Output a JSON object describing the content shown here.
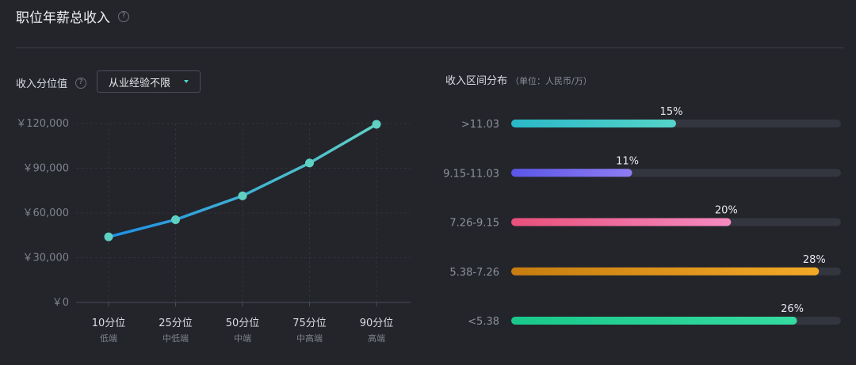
{
  "header": {
    "title": "职位年薪总收入",
    "help_icon": "question-icon",
    "help_glyph": "?"
  },
  "line_section": {
    "label": "收入分位值",
    "help_glyph": "?",
    "select_value": "从业经验不限"
  },
  "dist_section": {
    "title": "收入区间分布",
    "unit": "（单位：人民币/万）"
  },
  "colors": {
    "line": "#2ab3d6",
    "point": "#5fd1c2",
    "track": "#33363e"
  },
  "chart_data": [
    {
      "type": "line",
      "x": [
        "10分位",
        "25分位",
        "50分位",
        "75分位",
        "90分位"
      ],
      "x_sublabels": [
        "低端",
        "中低端",
        "中端",
        "中高端",
        "高端"
      ],
      "values": [
        44000,
        55500,
        71500,
        93500,
        119500
      ],
      "y_ticks": [
        "￥120,000",
        "￥90,000",
        "￥60,000",
        "￥30,000",
        "￥0"
      ],
      "y_tick_values": [
        120000,
        90000,
        60000,
        30000,
        0
      ],
      "ylim": [
        0,
        120000
      ],
      "grid": true
    },
    {
      "type": "bar",
      "orientation": "horizontal",
      "categories": [
        ">11.03",
        "9.15-11.03",
        "7.26-9.15",
        "5.38-7.26",
        "<5.38"
      ],
      "values": [
        15,
        11,
        20,
        28,
        26
      ],
      "value_labels": [
        "15%",
        "11%",
        "20%",
        "28%",
        "26%"
      ],
      "max": 30,
      "colors": [
        [
          "#2ab8c8",
          "#55d4c8"
        ],
        [
          "#5b56e8",
          "#8f7cf2"
        ],
        [
          "#e9507a",
          "#f58bc2"
        ],
        [
          "#c77d0f",
          "#f3a927"
        ],
        [
          "#19c88a",
          "#35dba0"
        ]
      ]
    }
  ]
}
